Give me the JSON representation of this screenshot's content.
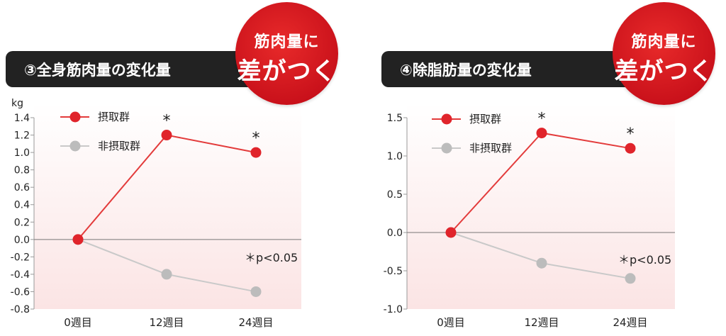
{
  "charts": [
    {
      "title": "③全身筋肉量の変化量",
      "badge_top": "筋肉量に",
      "badge_main": "差がつく",
      "note": "＊p<0.05"
    },
    {
      "title": "④除脂肪量の変化量",
      "badge_top": "筋肉量に",
      "badge_main": "差がつく",
      "note": "＊p<0.05"
    }
  ],
  "colors": {
    "intake": "#e0242b",
    "non_intake": "#bcbcbc",
    "intake_line": "#e33b3b",
    "non_intake_line": "#c9c9c9"
  },
  "chart_data": [
    {
      "type": "line",
      "title": "③全身筋肉量の変化量",
      "ylabel": "kg",
      "categories": [
        "0週目",
        "12週目",
        "24週目"
      ],
      "ylim": [
        -0.8,
        1.4
      ],
      "yticks": [
        1.4,
        1.2,
        1.0,
        0.8,
        0.6,
        0.4,
        0.2,
        0.0,
        -0.2,
        -0.4,
        -0.6,
        -0.8
      ],
      "ytick_labels": [
        "1.4",
        "1.2",
        "1.0",
        "0.8",
        "0.6",
        "0.4",
        "0.2",
        "0.0",
        "-0.2",
        "-0.4",
        "-0.6",
        "-0.8"
      ],
      "series": [
        {
          "name": "摂取群",
          "values": [
            0.0,
            1.2,
            1.0
          ],
          "marks": [
            "",
            "*",
            "*"
          ]
        },
        {
          "name": "非摂取群",
          "values": [
            0.0,
            -0.4,
            -0.6
          ],
          "marks": [
            "",
            "",
            ""
          ]
        }
      ],
      "annotation": "＊p<0.05",
      "legend": "top-left"
    },
    {
      "type": "line",
      "title": "④除脂肪量の変化量",
      "ylabel": "",
      "categories": [
        "0週目",
        "12週目",
        "24週目"
      ],
      "ylim": [
        -1.0,
        1.5
      ],
      "yticks": [
        1.5,
        1.0,
        0.5,
        0.0,
        -0.5,
        -1.0
      ],
      "ytick_labels": [
        "1.5",
        "1.0",
        "0.5",
        "0.0",
        "-0.5",
        "-1.0"
      ],
      "series": [
        {
          "name": "摂取群",
          "values": [
            0.0,
            1.3,
            1.1
          ],
          "marks": [
            "",
            "*",
            "*"
          ]
        },
        {
          "name": "非摂取群",
          "values": [
            0.0,
            -0.4,
            -0.6
          ],
          "marks": [
            "",
            "",
            ""
          ]
        }
      ],
      "annotation": "＊p<0.05",
      "legend": "top-left"
    }
  ]
}
